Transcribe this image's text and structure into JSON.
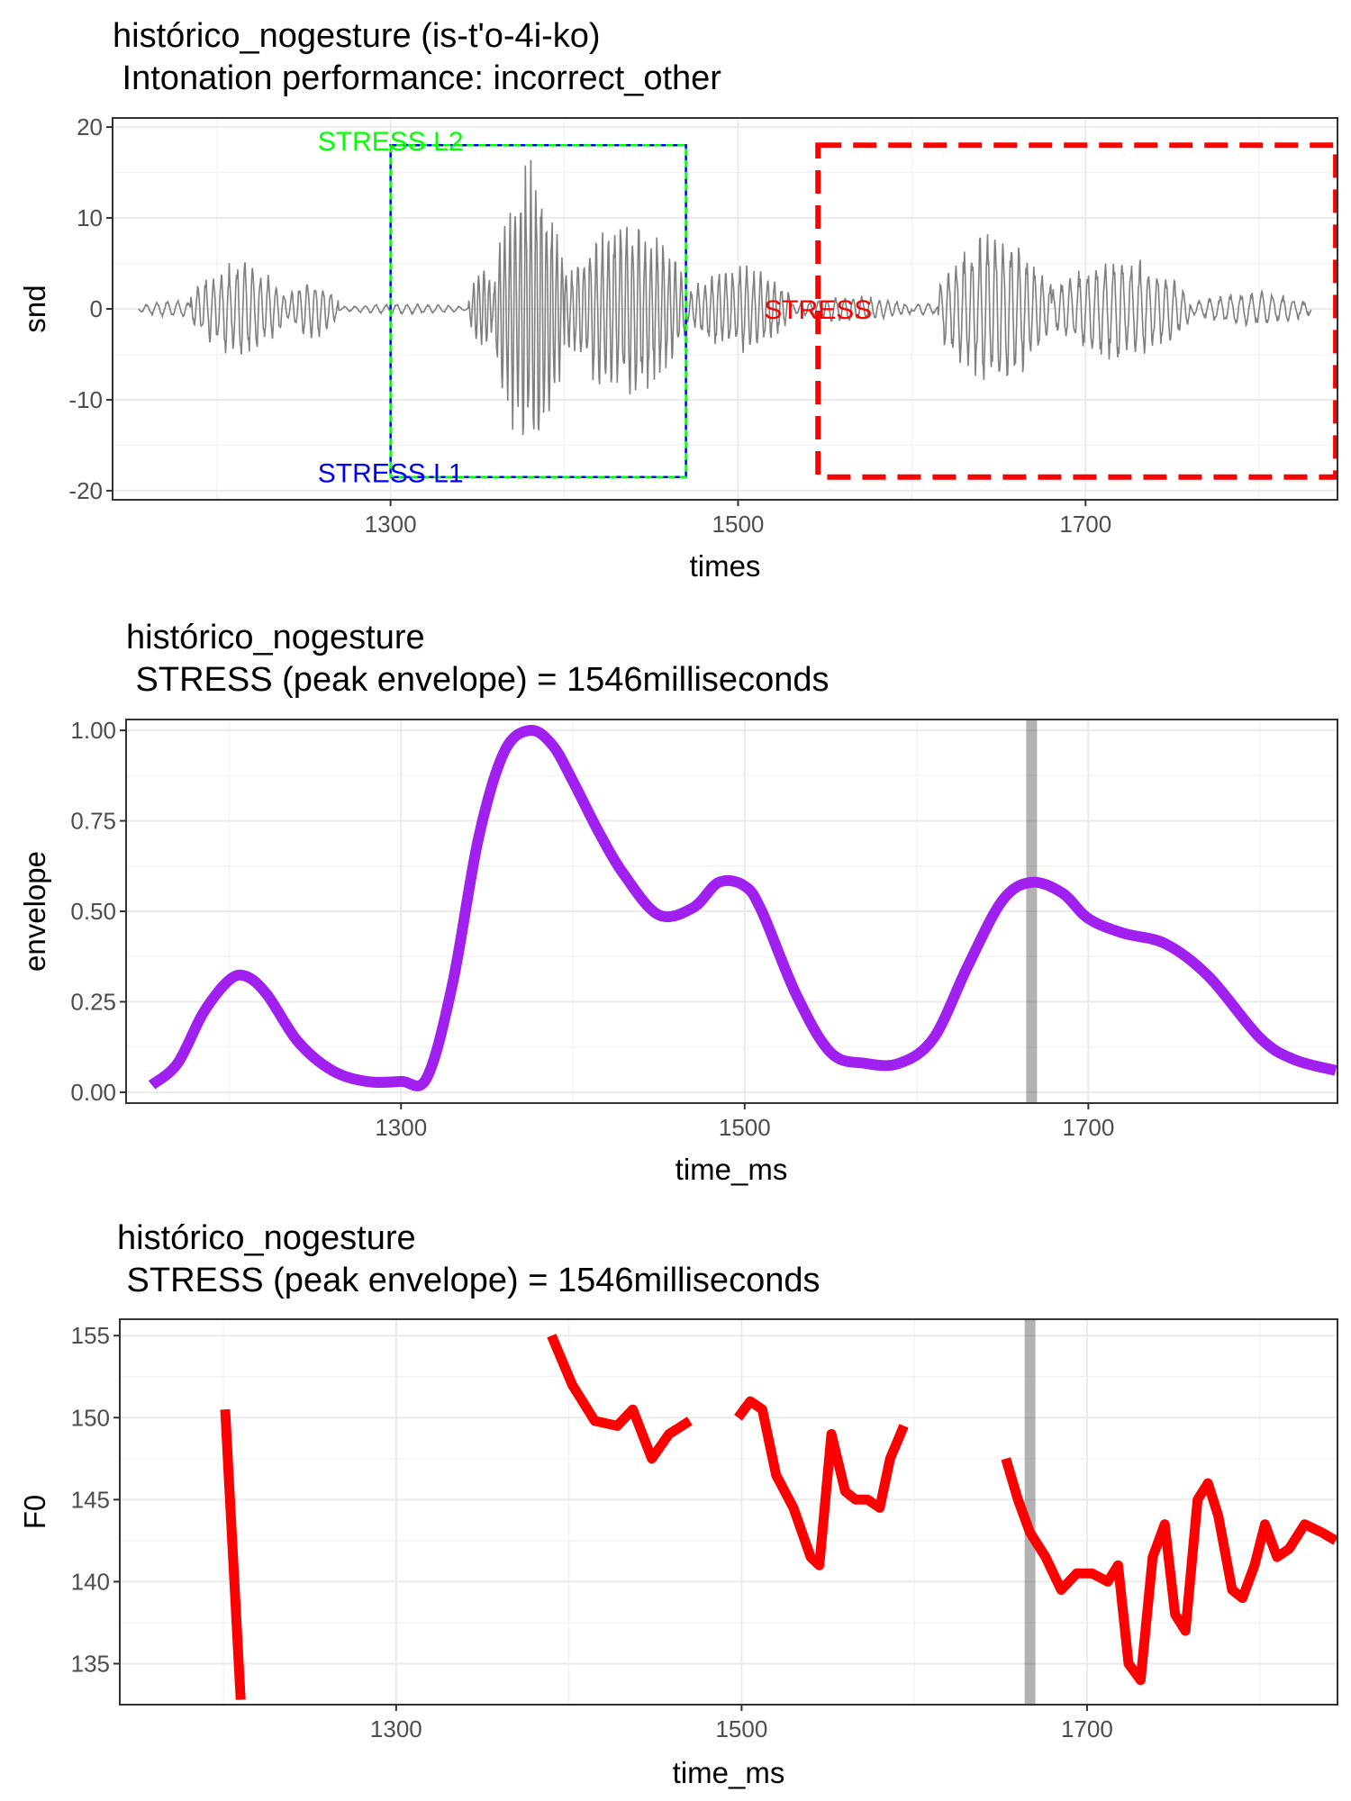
{
  "chart_data": [
    {
      "type": "line",
      "title": "histórico_nogesture  (is-t'o-4i-ko)",
      "subtitle": " Intonation performance: incorrect_other",
      "xlabel": "times",
      "ylabel": "snd",
      "xlim": [
        1140,
        1845
      ],
      "ylim": [
        -21,
        21
      ],
      "x_ticks": [
        1300,
        1500,
        1700
      ],
      "y_ticks": [
        -20,
        -10,
        0,
        10,
        20
      ],
      "grid": true,
      "series": [
        {
          "color": "#7f7f7f",
          "segments": [
            {
              "start": 1155,
              "end": 1195,
              "amp": 1.0,
              "period": 6.0
            },
            {
              "start": 1185,
              "end": 1240,
              "amp": 5.5,
              "period": 4.5
            },
            {
              "start": 1240,
              "end": 1270,
              "amp": 3.5,
              "period": 4.5
            },
            {
              "start": 1270,
              "end": 1345,
              "amp": 0.6,
              "period": 6.0
            },
            {
              "start": 1345,
              "end": 1360,
              "amp": 5.0,
              "period": 3.0
            },
            {
              "start": 1360,
              "end": 1400,
              "amp": 17.0,
              "period": 3.0
            },
            {
              "start": 1400,
              "end": 1470,
              "amp": 10.5,
              "period": 3.5
            },
            {
              "start": 1470,
              "end": 1530,
              "amp": 5.0,
              "period": 4.0
            },
            {
              "start": 1530,
              "end": 1600,
              "amp": 1.5,
              "period": 5.0
            },
            {
              "start": 1600,
              "end": 1615,
              "amp": 0.8,
              "period": 6.0
            },
            {
              "start": 1615,
              "end": 1680,
              "amp": 9.0,
              "period": 4.5
            },
            {
              "start": 1680,
              "end": 1760,
              "amp": 6.0,
              "period": 5.0
            },
            {
              "start": 1760,
              "end": 1830,
              "amp": 2.0,
              "period": 6.0
            }
          ]
        }
      ],
      "annotations": [
        {
          "text": "STRESS L2",
          "x": 1300,
          "y": 18.5,
          "color": "#00ff00"
        },
        {
          "text": "STRESS L1",
          "x": 1300,
          "y": -18,
          "color": "#0000ff"
        },
        {
          "text": "STRESS",
          "x": 1546,
          "y": 0,
          "color": "#ff0000"
        }
      ],
      "regions": [
        {
          "label": "STRESS L1/L2",
          "x0": 1300,
          "x1": 1470,
          "y0": -18.5,
          "y1": 18,
          "stroke": "#0000ff",
          "stroke2": "#00ff00"
        },
        {
          "label": "STRESS",
          "x0": 1546,
          "x1": 1844,
          "y0": -18.5,
          "y1": 18,
          "stroke": "#ff0000"
        }
      ]
    },
    {
      "type": "line",
      "title": "histórico_nogesture",
      "subtitle": " STRESS (peak envelope) = 1546milliseconds",
      "xlabel": "time_ms",
      "ylabel": "envelope",
      "xlim": [
        1140,
        1845
      ],
      "ylim": [
        -0.03,
        1.03
      ],
      "x_ticks": [
        1300,
        1500,
        1700
      ],
      "y_ticks": [
        0.0,
        0.25,
        0.5,
        0.75,
        1.0
      ],
      "y_tick_labels": [
        "0.00",
        "0.25",
        "0.50",
        "0.75",
        "1.00"
      ],
      "grid": true,
      "vline": 1667,
      "series": [
        {
          "color": "#a020f0",
          "x": [
            1155,
            1170,
            1185,
            1200,
            1210,
            1222,
            1240,
            1260,
            1280,
            1300,
            1315,
            1330,
            1345,
            1360,
            1375,
            1388,
            1400,
            1415,
            1430,
            1450,
            1470,
            1485,
            1500,
            1510,
            1530,
            1550,
            1570,
            1590,
            1610,
            1630,
            1650,
            1667,
            1685,
            1700,
            1720,
            1745,
            1770,
            1800,
            1820,
            1844
          ],
          "y": [
            0.02,
            0.08,
            0.22,
            0.31,
            0.32,
            0.27,
            0.14,
            0.06,
            0.03,
            0.03,
            0.04,
            0.3,
            0.7,
            0.94,
            1.0,
            0.96,
            0.86,
            0.72,
            0.6,
            0.49,
            0.51,
            0.58,
            0.57,
            0.5,
            0.27,
            0.11,
            0.08,
            0.08,
            0.15,
            0.35,
            0.53,
            0.58,
            0.55,
            0.48,
            0.44,
            0.41,
            0.32,
            0.15,
            0.09,
            0.06
          ]
        }
      ]
    },
    {
      "type": "line",
      "title": "histórico_nogesture",
      "subtitle": " STRESS (peak envelope) = 1546milliseconds",
      "xlabel": "time_ms",
      "ylabel": "F0",
      "xlim": [
        1140,
        1845
      ],
      "ylim": [
        132.5,
        156
      ],
      "x_ticks": [
        1300,
        1500,
        1700
      ],
      "y_ticks": [
        135,
        140,
        145,
        150,
        155
      ],
      "grid": true,
      "vline": 1667,
      "series": [
        {
          "color": "#ff0000",
          "segments": [
            {
              "x": [
                1201,
                1210
              ],
              "y": [
                150.5,
                132.8
              ]
            },
            {
              "x": [
                1390,
                1402,
                1415,
                1428,
                1437,
                1448,
                1458,
                1470
              ],
              "y": [
                155.0,
                152.0,
                149.8,
                149.5,
                150.5,
                147.5,
                149.0,
                149.8
              ]
            },
            {
              "x": [
                1498,
                1505,
                1512,
                1520,
                1530,
                1540,
                1545,
                1552,
                1560,
                1566,
                1573,
                1580,
                1586,
                1594
              ],
              "y": [
                150.0,
                151.0,
                150.5,
                146.5,
                144.5,
                141.5,
                141.0,
                149.0,
                145.5,
                145.0,
                145.0,
                144.5,
                147.5,
                149.5
              ]
            },
            {
              "x": [
                1653,
                1660,
                1667,
                1676,
                1685,
                1694,
                1703,
                1712,
                1718,
                1724,
                1731,
                1738,
                1745,
                1751,
                1757,
                1764,
                1770,
                1776,
                1784,
                1790,
                1797,
                1803,
                1810,
                1817,
                1826,
                1836,
                1844
              ],
              "y": [
                147.5,
                145.0,
                143.0,
                141.5,
                139.5,
                140.5,
                140.5,
                140.0,
                141.0,
                135.0,
                134.0,
                141.5,
                143.5,
                138.0,
                137.0,
                145.0,
                146.0,
                144.0,
                139.5,
                139.0,
                141.0,
                143.5,
                141.5,
                142.0,
                143.5,
                143.0,
                142.5
              ]
            }
          ]
        }
      ]
    }
  ]
}
